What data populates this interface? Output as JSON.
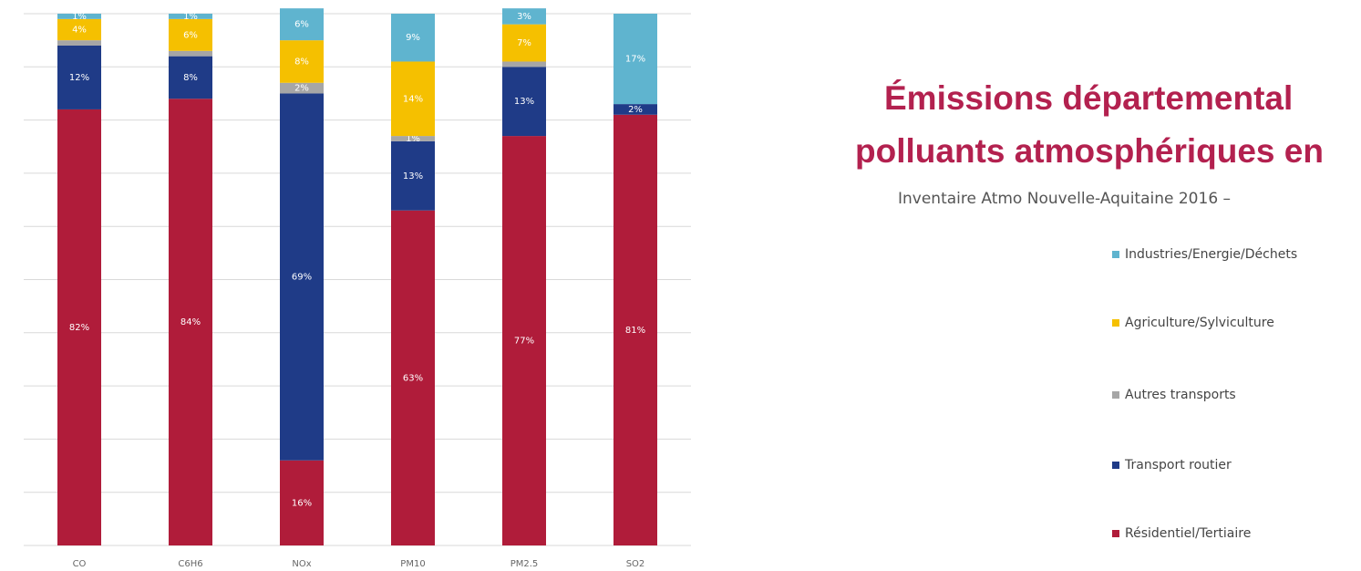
{
  "chart_data": {
    "type": "stacked-bar",
    "title": [
      "Émissions départemental",
      "polluants atmosphériques en"
    ],
    "subtitle": "Inventaire Atmo Nouvelle-Aquitaine 2016 –",
    "categories": [
      "CO",
      "C6H6",
      "NOx",
      "PM10",
      "PM2.5",
      "SO2"
    ],
    "ylim": [
      0,
      100
    ],
    "yticks": [
      0,
      10,
      20,
      30,
      40,
      50,
      60,
      70,
      80,
      90,
      100
    ],
    "grid": true,
    "legend": "right",
    "series": [
      {
        "name": "Résidentiel/Tertiaire",
        "color": "#b01c3a",
        "values": [
          82,
          84,
          16,
          63,
          77,
          81
        ],
        "value_labels": [
          "82%",
          "84%",
          "16%",
          "63%",
          "77%",
          "81%"
        ]
      },
      {
        "name": "Transport routier",
        "color": "#1f3b87",
        "values": [
          12,
          8,
          69,
          13,
          13,
          2
        ],
        "value_labels": [
          "12%",
          "8%",
          "69%",
          "13%",
          "13%",
          "2%"
        ]
      },
      {
        "name": "Autres transports",
        "color": "#a6a6a6",
        "values": [
          1,
          1,
          2,
          1,
          1,
          0
        ],
        "value_labels": [
          null,
          null,
          "2%",
          "1%",
          null,
          null
        ]
      },
      {
        "name": "Agriculture/Sylviculture",
        "color": "#f5c000",
        "values": [
          4,
          6,
          8,
          14,
          7,
          0
        ],
        "value_labels": [
          "4%",
          "6%",
          "8%",
          "14%",
          "7%",
          null
        ]
      },
      {
        "name": "Industries/Energie/Déchets",
        "color": "#5fb4cf",
        "values": [
          1,
          1,
          6,
          9,
          3,
          17
        ],
        "value_labels": [
          "1%",
          "1%",
          "6%",
          "9%",
          "3%",
          "17%"
        ]
      }
    ]
  }
}
